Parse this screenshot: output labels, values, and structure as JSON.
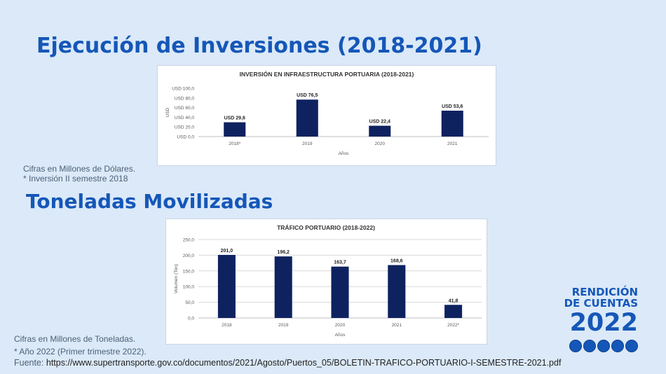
{
  "slide": {
    "title1": "Ejecución de Inversiones (2018-2021)",
    "title2": "Toneladas Movilizadas",
    "note1_line1": "Cifras en Millones de Dólares.",
    "note1_line2": "* Inversión II semestre 2018",
    "note2_line1": "Cifras en Millones de Toneladas.",
    "note2_line2": "* Año 2022 (Primer trimestre 2022).",
    "source_label": "Fuente:",
    "source_url": "https://www.supertransporte.gov.co/documentos/2021/Agosto/Puertos_05/BOLETIN-TRAFICO-PORTUARIO-I-SEMESTRE-2021.pdf"
  },
  "logo": {
    "line1": "RENDICIÓN",
    "line2": "DE CUENTAS",
    "year": "2022",
    "accent": "#1557b8"
  },
  "colors": {
    "bar": "#0e2260",
    "background": "#dbe9f8",
    "title": "#1557b8"
  },
  "chart_data": [
    {
      "type": "bar",
      "title": "INVERSIÓN EN INFRAESTRUCTURA PORTUARIA (2018-2021)",
      "categories": [
        "2018*",
        "2019",
        "2020",
        "2021"
      ],
      "values": [
        29.6,
        76.5,
        22.4,
        53.6
      ],
      "data_labels": [
        "USD 29,6",
        "USD 76,5",
        "USD 22,4",
        "USD 53,6"
      ],
      "xlabel": "Años",
      "ylabel": "USD",
      "ylim": [
        0,
        100
      ],
      "yticks": [
        "USD 0,0",
        "USD 20,0",
        "USD 40,0",
        "USD 60,0",
        "USD 80,0",
        "USD 100,0"
      ],
      "grid": false
    },
    {
      "type": "bar",
      "title": "TRÁFICO PORTUARIO (2018-2022)",
      "categories": [
        "2018",
        "2019",
        "2020",
        "2021",
        "2022*"
      ],
      "values": [
        201.0,
        196.2,
        163.7,
        168.6,
        41.8
      ],
      "data_labels": [
        "201,0",
        "196,2",
        "163,7",
        "168,6",
        "41,8"
      ],
      "xlabel": "Años",
      "ylabel": "Volumen (Ton)",
      "ylim": [
        0,
        250
      ],
      "yticks": [
        "0,0",
        "50,0",
        "100,0",
        "150,0",
        "200,0",
        "250,0"
      ],
      "grid": true
    }
  ]
}
